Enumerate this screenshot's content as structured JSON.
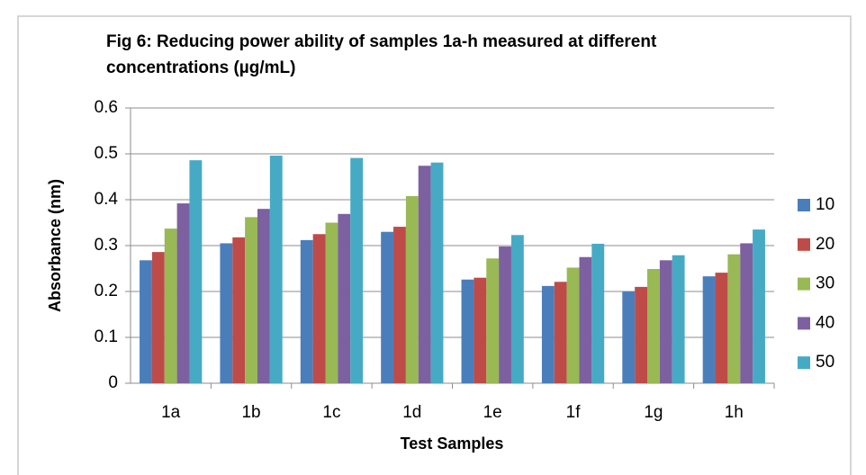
{
  "chart_data": {
    "type": "bar",
    "title": [
      "Fig 6: Reducing power ability of samples 1a-h measured at different",
      "concentrations (µg/mL)"
    ],
    "x_label": "Test Samples",
    "y_label": "Absorbance (nm)",
    "categories": [
      "1a",
      "1b",
      "1c",
      "1d",
      "1e",
      "1f",
      "1g",
      "1h"
    ],
    "series": [
      {
        "name": "10",
        "color": "#4a7ebb",
        "values": [
          0.268,
          0.305,
          0.312,
          0.33,
          0.226,
          0.212,
          0.2,
          0.233
        ]
      },
      {
        "name": "20",
        "color": "#be4b48",
        "values": [
          0.286,
          0.318,
          0.325,
          0.341,
          0.23,
          0.221,
          0.21,
          0.241
        ]
      },
      {
        "name": "30",
        "color": "#98b954",
        "values": [
          0.337,
          0.362,
          0.35,
          0.408,
          0.272,
          0.252,
          0.249,
          0.281
        ]
      },
      {
        "name": "40",
        "color": "#7d60a0",
        "values": [
          0.392,
          0.38,
          0.369,
          0.474,
          0.298,
          0.275,
          0.268,
          0.305
        ]
      },
      {
        "name": "50",
        "color": "#46aac5",
        "values": [
          0.486,
          0.496,
          0.491,
          0.481,
          0.323,
          0.304,
          0.279,
          0.335
        ]
      }
    ],
    "ylim": [
      0,
      0.6
    ],
    "yticks": [
      0,
      0.1,
      0.2,
      0.3,
      0.4,
      0.5,
      0.6
    ],
    "grid": true,
    "legend": "right"
  }
}
